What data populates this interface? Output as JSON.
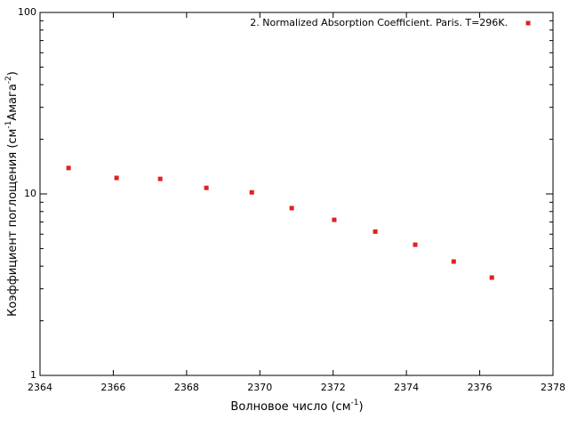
{
  "chart_data": {
    "type": "scatter",
    "xlabel": [
      "Волновое число (см",
      "-1",
      ")"
    ],
    "ylabel": [
      "Коэффициент поглощения (см",
      "-1",
      "Амага",
      "-2",
      ")"
    ],
    "xlim": [
      2364,
      2378
    ],
    "xticks": [
      2364,
      2366,
      2368,
      2370,
      2372,
      2374,
      2376,
      2378
    ],
    "ylim": [
      1,
      100
    ],
    "yticks": [
      1,
      10,
      100
    ],
    "yscale": "log",
    "legend": "top-right",
    "series": [
      {
        "name": "2. Normalized Absorption Coefficient. Paris. T=296K.",
        "color": "#e02020",
        "x": [
          2364.78,
          2366.09,
          2367.28,
          2368.54,
          2369.78,
          2370.87,
          2372.03,
          2373.15,
          2374.24,
          2375.29,
          2376.33
        ],
        "values": [
          13.9,
          12.25,
          12.1,
          10.8,
          10.2,
          8.35,
          7.2,
          6.2,
          5.25,
          4.24,
          3.46
        ]
      }
    ]
  }
}
